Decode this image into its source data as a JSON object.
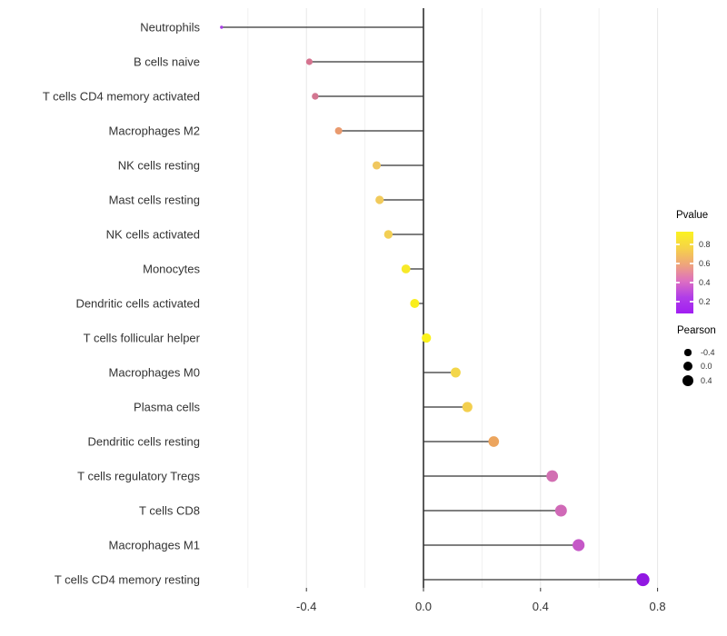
{
  "chart_data": {
    "type": "scatter",
    "subtype": "lollipop",
    "orientation": "horizontal",
    "title": "",
    "xlabel": "",
    "ylabel": "",
    "categories": [
      "Neutrophils",
      "B cells naive",
      "T cells CD4 memory activated",
      "Macrophages M2",
      "NK cells resting",
      "Mast cells resting",
      "NK cells activated",
      "Monocytes",
      "Dendritic cells activated",
      "T cells follicular helper",
      "Macrophages M0",
      "Plasma cells",
      "Dendritic cells resting",
      "T cells regulatory  Tregs",
      "T cells CD8",
      "Macrophages M1",
      "T cells CD4 memory resting"
    ],
    "series": [
      {
        "name": "Pearson",
        "values": [
          -0.69,
          -0.39,
          -0.37,
          -0.29,
          -0.16,
          -0.15,
          -0.12,
          -0.06,
          -0.03,
          0.01,
          0.11,
          0.15,
          0.24,
          0.44,
          0.47,
          0.53,
          0.75
        ]
      },
      {
        "name": "Pvalue (estimated from point color)",
        "values": [
          0.13,
          0.55,
          0.56,
          0.67,
          0.76,
          0.77,
          0.79,
          0.87,
          0.91,
          0.93,
          0.81,
          0.78,
          0.69,
          0.52,
          0.5,
          0.44,
          0.09
        ]
      }
    ],
    "point_colors": [
      "#a83ee5",
      "#d5738f",
      "#d37691",
      "#e99a6e",
      "#f0c75f",
      "#f1ca5b",
      "#f2cf55",
      "#f7e928",
      "#f9ee1d",
      "#faf11c",
      "#f3d64a",
      "#f3cf4e",
      "#eca55e",
      "#d26fb2",
      "#d069b7",
      "#c558c7",
      "#9118e2"
    ],
    "xlim": [
      -0.73,
      0.85
    ],
    "x_ticks": [
      -0.4,
      0.0,
      0.4,
      0.8
    ],
    "x_tick_labels": [
      "-0.4",
      "0.0",
      "0.4",
      "0.8"
    ],
    "grid": "vertical gridlines every 0.2, light gray",
    "zero_line": true,
    "legend_position": "right"
  },
  "legend": {
    "pvalue": {
      "title": "Pvalue",
      "tick_labels": [
        "0.8",
        "0.6",
        "0.4",
        "0.2"
      ],
      "gradient_stops": [
        "#fbf321",
        "#f6d348",
        "#efa57b",
        "#de70c0",
        "#b13ee8",
        "#a11ef2"
      ]
    },
    "pearson": {
      "title": "Pearson",
      "items": [
        {
          "label": "-0.4",
          "value": -0.4
        },
        {
          "label": "0.0",
          "value": 0.0
        },
        {
          "label": "0.4",
          "value": 0.4
        }
      ],
      "dot_color": "#000000"
    }
  },
  "colors": {
    "background": "#ffffff",
    "axis_line": "#000000",
    "stem": "#333333",
    "grid_major": "#e7e7e7",
    "grid_minor": "#f1f1f1",
    "axis_text": "#333333"
  }
}
